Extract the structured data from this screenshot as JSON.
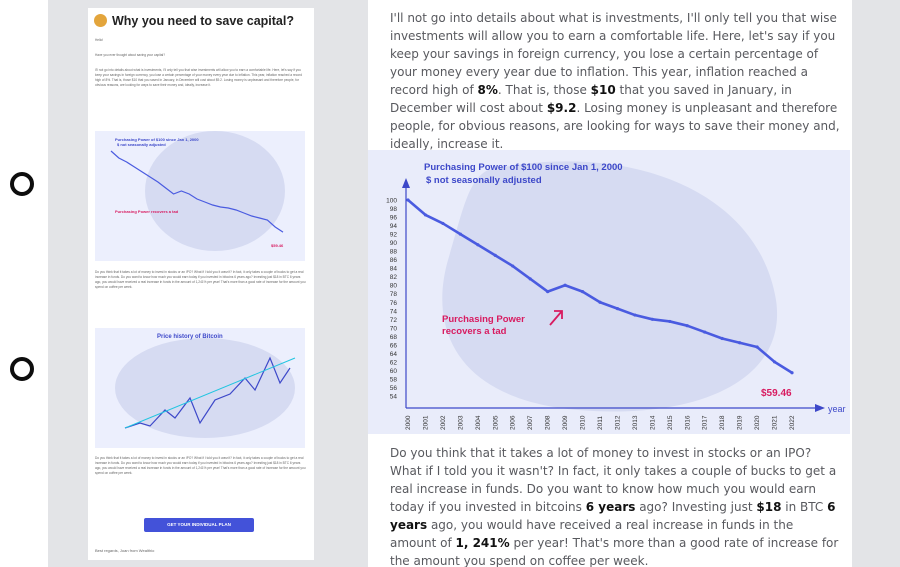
{
  "email": {
    "title": "Why you need to save capital?",
    "greeting": "Hello!",
    "question": "Have you ever thought about saving your capital?",
    "para1": "I'll not go into details about what is investments, I'll only tell you that wise investments will allow you to earn a comfortable life. Here, let's say if you keep your savings in foreign currency, you lose a certain percentage of your money every year due to inflation. This year, inflation reached a record high of 8%. That is, those $10 that you saved in January, in December will cost about $9.2. Losing money is unpleasant and therefore people, for obvious reasons, are looking for ways to save their money and, ideally, increase it.",
    "para2": "Do you think that it takes a lot of money to invest in stocks or an IPO? What if I told you it wasn't? In fact, it only takes a couple of bucks to get a real increase in funds. Do you want to know how much you would earn today if you invested in bitcoins 6 years ago? Investing just $18 in BTC 6 years ago, you would have received a real increase in funds in the amount of 1,241% per year! That's more than a good rate of increase for the amount you spend on coffee per week.",
    "cta_label": "GET YOUR INDIVIDUAL PLAN",
    "signoff": "Best regards, Joan from Wealthio"
  },
  "article": {
    "para1": {
      "intro": "I'll not go into details about what is investments, I'll only tell you that wise investments will allow you to earn a comfortable life. Here, let's say if you keep your savings in foreign currency, you lose a certain percentage of your money every year due to inflation. This year, inflation reached a record high of ",
      "rate": "8%",
      "mid": ". That is, those ",
      "saved": "$10",
      "mid2": " that you saved in January, in December will cost about ",
      "cost": "$9.2",
      "end": ". Losing money is unpleasant and therefore people, for obvious reasons, are looking for ways to save their money and, ideally, increase it."
    },
    "para2": {
      "intro": "Do you think that it takes a lot of money to invest in stocks or an IPO? What if I told you it wasn't? In fact, it only takes a couple of bucks to get a real increase in funds. Do you want to know how much you would earn today if you invested in bitcoins ",
      "years1": "6 years",
      "mid": " ago? Investing just ",
      "amount": "$18",
      "mid2": " in BTC ",
      "years2": "6 years",
      "mid3": " ago, you would have received a real increase in funds in the amount of ",
      "pct": "1, 241%",
      "end": " per year! That's more than a good rate of increase for the amount you spend on coffee per week."
    }
  },
  "bitcoin_title": "Price history of Bitcoin",
  "chart_data": {
    "type": "line",
    "title": "Purchasing Power of $100 since Jan 1, 2000",
    "subtitle": "$ not seasonally adjusted",
    "xlabel": "year",
    "ylim": [
      54,
      100
    ],
    "yticks": [
      100,
      98,
      96,
      94,
      92,
      90,
      88,
      86,
      84,
      82,
      80,
      78,
      76,
      74,
      72,
      70,
      68,
      66,
      64,
      62,
      60,
      58,
      56,
      54
    ],
    "categories": [
      "2000",
      "2001",
      "2002",
      "2003",
      "2004",
      "2005",
      "2006",
      "2007",
      "2008",
      "2009",
      "2010",
      "2011",
      "2012",
      "2013",
      "2014",
      "2015",
      "2016",
      "2017",
      "2018",
      "2019",
      "2020",
      "2021",
      "2022"
    ],
    "values": [
      100,
      96.5,
      94.5,
      92,
      89.5,
      87,
      84.5,
      81.5,
      78.5,
      80,
      78.5,
      76,
      74.5,
      73,
      72,
      71.5,
      70.5,
      69,
      67.5,
      66.5,
      65.5,
      62,
      59.46
    ],
    "annotation": "Purchasing Power recovers a tad",
    "end_label": "$59.46",
    "colors": {
      "line": "#4a5be0",
      "annotation": "#d81b60",
      "text": "#3d48c9"
    }
  }
}
